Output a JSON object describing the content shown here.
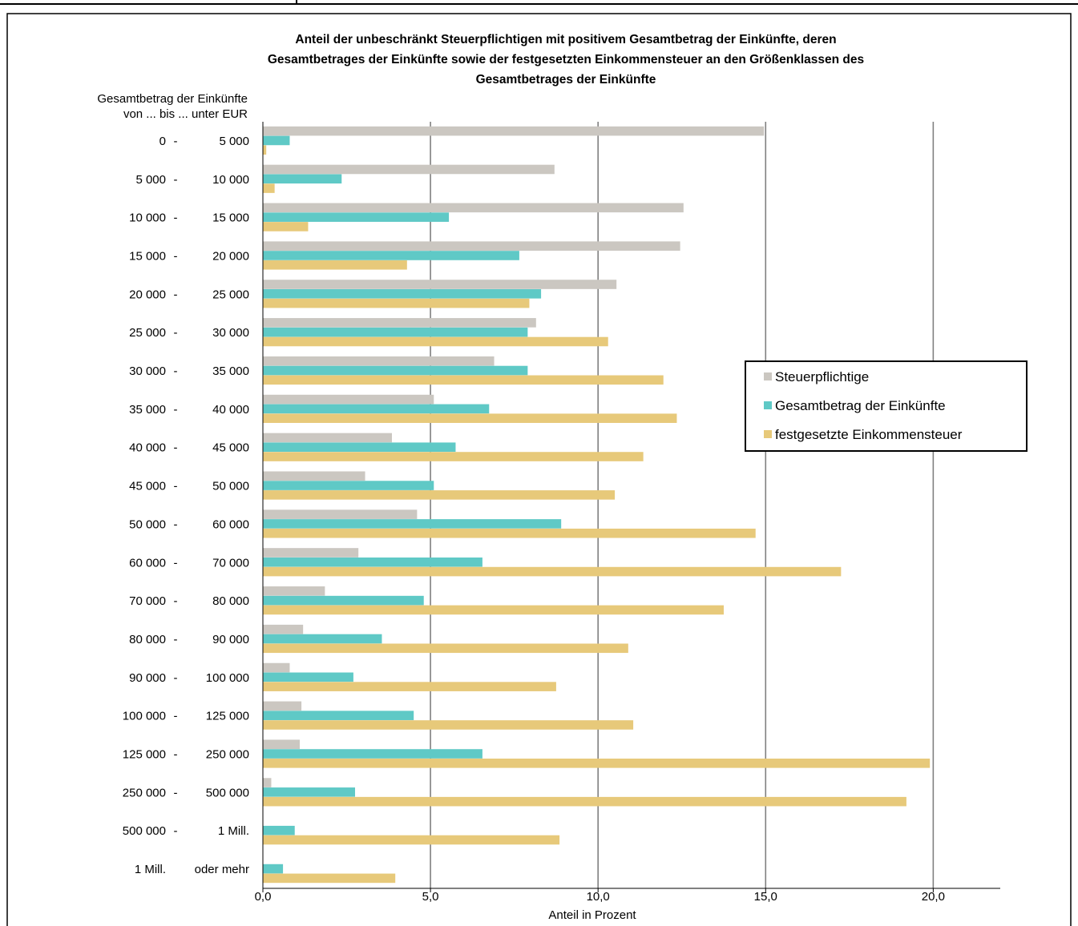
{
  "chart_data": {
    "type": "bar",
    "orientation": "horizontal",
    "title_lines": [
      "Anteil der unbeschränkt Steuerpflichtigen mit positivem Gesamtbetrag der Einkünfte, deren",
      "Gesamtbetrages der Einkünfte sowie der festgesetzten Einkommensteuer an den Größenklassen des",
      "Gesamtbetrages der Einkünfte"
    ],
    "category_header": [
      "Gesamtbetrag der Einkünfte",
      "von ... bis ... unter EUR"
    ],
    "categories": [
      {
        "from": "0",
        "sep": "-",
        "to": "5 000"
      },
      {
        "from": "5 000",
        "sep": "-",
        "to": "10 000"
      },
      {
        "from": "10 000",
        "sep": "-",
        "to": "15 000"
      },
      {
        "from": "15 000",
        "sep": "-",
        "to": "20 000"
      },
      {
        "from": "20 000",
        "sep": "-",
        "to": "25 000"
      },
      {
        "from": "25 000",
        "sep": "-",
        "to": "30 000"
      },
      {
        "from": "30 000",
        "sep": "-",
        "to": "35 000"
      },
      {
        "from": "35 000",
        "sep": "-",
        "to": "40 000"
      },
      {
        "from": "40 000",
        "sep": "-",
        "to": "45 000"
      },
      {
        "from": "45 000",
        "sep": "-",
        "to": "50 000"
      },
      {
        "from": "50 000",
        "sep": "-",
        "to": "60 000"
      },
      {
        "from": "60 000",
        "sep": "-",
        "to": "70 000"
      },
      {
        "from": "70 000",
        "sep": "-",
        "to": "80 000"
      },
      {
        "from": "80 000",
        "sep": "-",
        "to": "90 000"
      },
      {
        "from": "90 000",
        "sep": "-",
        "to": "100 000"
      },
      {
        "from": "100 000",
        "sep": "-",
        "to": "125 000"
      },
      {
        "from": "125 000",
        "sep": "-",
        "to": "250 000"
      },
      {
        "from": "250 000",
        "sep": "-",
        "to": "500 000"
      },
      {
        "from": "500 000",
        "sep": "-",
        "to": "1 Mill."
      },
      {
        "from": "1 Mill.",
        "sep": "",
        "to": "oder mehr"
      }
    ],
    "series": [
      {
        "name": "Steuerpflichtige",
        "color": "#cbc7c1",
        "values": [
          14.95,
          8.7,
          12.55,
          12.45,
          10.55,
          8.15,
          6.9,
          5.1,
          3.85,
          3.05,
          4.6,
          2.85,
          1.85,
          1.2,
          0.8,
          1.15,
          1.1,
          0.25,
          0.0,
          0.0
        ]
      },
      {
        "name": "Gesamtbetrag der Einkünfte",
        "color": "#5fc9c6",
        "values": [
          0.8,
          2.35,
          5.55,
          7.65,
          8.3,
          7.9,
          7.9,
          6.75,
          5.75,
          5.1,
          8.9,
          6.55,
          4.8,
          3.55,
          2.7,
          4.5,
          6.55,
          2.75,
          0.95,
          0.6
        ]
      },
      {
        "name": "festgesetzte Einkommensteuer",
        "color": "#e7c97a",
        "values": [
          0.1,
          0.35,
          1.35,
          4.3,
          7.95,
          10.3,
          11.95,
          12.35,
          11.35,
          10.5,
          14.7,
          17.25,
          13.75,
          10.9,
          8.75,
          11.05,
          19.9,
          19.2,
          8.85,
          3.95
        ]
      }
    ],
    "xlim": [
      0,
      22
    ],
    "xticks": [
      0,
      5,
      10,
      15,
      20
    ],
    "xtick_labels": [
      "0,0",
      "5,0",
      "10,0",
      "15,0",
      "20,0"
    ],
    "xlabel": "Anteil in Prozent",
    "grid": "vertical",
    "legend_position": "right"
  }
}
